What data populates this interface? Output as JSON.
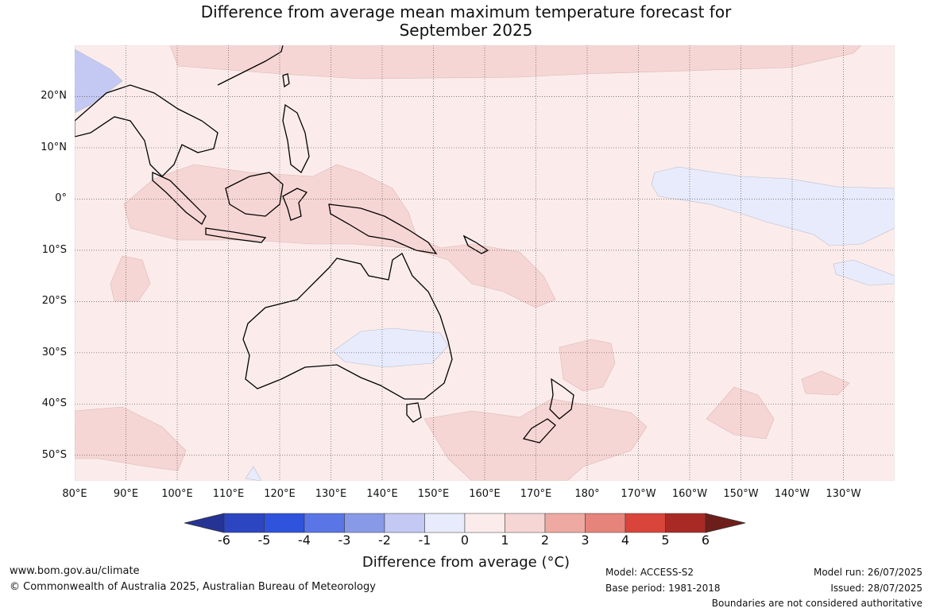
{
  "title_line1": "Difference from average mean maximum temperature forecast for",
  "title_line2": "September 2025",
  "map": {
    "lon_range": [
      80,
      240
    ],
    "lat_range": [
      -55,
      30
    ],
    "grid": true,
    "lat_labels": [
      "20°N",
      "10°N",
      "0°",
      "10°S",
      "20°S",
      "30°S",
      "40°S",
      "50°S"
    ],
    "lon_labels": [
      "80°E",
      "90°E",
      "100°E",
      "110°E",
      "120°E",
      "130°E",
      "140°E",
      "150°E",
      "160°E",
      "170°E",
      "180°",
      "170°W",
      "160°W",
      "150°W",
      "140°W",
      "130°W"
    ],
    "base_color": "#fbeceb",
    "warm_color": "#f6d6d4",
    "cool_color": "#e8ebfb",
    "cold_color": "#c3c9f3"
  },
  "colorbar": {
    "ticks": [
      "-6",
      "-5",
      "-4",
      "-3",
      "-2",
      "-1",
      "0",
      "1",
      "2",
      "3",
      "4",
      "5",
      "6"
    ],
    "colors": [
      "#253494",
      "#2c45c1",
      "#2f53dc",
      "#5a76e6",
      "#8899e8",
      "#c3c9f3",
      "#e8ebfb",
      "#fbeceb",
      "#f6d6d4",
      "#eeaaa2",
      "#e6837a",
      "#d9453b",
      "#a92a25",
      "#6e1e1a"
    ],
    "label": "Difference from average (°C)"
  },
  "footer": {
    "url": "www.bom.gov.au/climate",
    "copyright": "© Commonwealth of Australia 2025, Australian Bureau of Meteorology",
    "model": "Model: ACCESS-S2",
    "base_period": "Base period: 1981-2018",
    "model_run": "Model run: 26/07/2025",
    "issued": "Issued: 28/07/2025",
    "boundaries": "Boundaries are not considered authoritative"
  }
}
